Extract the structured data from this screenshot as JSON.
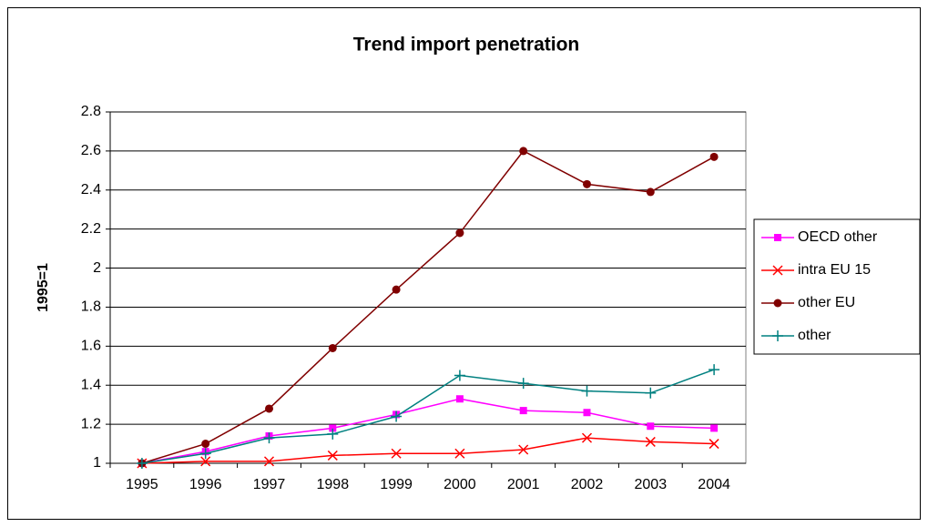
{
  "chart_data": {
    "type": "line",
    "title": "Trend import penetration",
    "y_label": "1995=1",
    "categories": [
      "1995",
      "1996",
      "1997",
      "1998",
      "1999",
      "2000",
      "2001",
      "2002",
      "2003",
      "2004"
    ],
    "series": [
      {
        "name": "OECD other",
        "color": "#ff00ff",
        "marker": "square",
        "values": [
          1.0,
          1.06,
          1.14,
          1.18,
          1.25,
          1.33,
          1.27,
          1.26,
          1.19,
          1.18
        ]
      },
      {
        "name": "intra EU 15",
        "color": "#ff0000",
        "marker": "x",
        "values": [
          1.0,
          1.01,
          1.01,
          1.04,
          1.05,
          1.05,
          1.07,
          1.13,
          1.11,
          1.1
        ]
      },
      {
        "name": "other EU",
        "color": "#800000",
        "marker": "circle",
        "values": [
          1.0,
          1.1,
          1.28,
          1.59,
          1.89,
          2.18,
          2.6,
          2.43,
          2.39,
          2.57
        ]
      },
      {
        "name": "other",
        "color": "#008080",
        "marker": "plus",
        "values": [
          1.0,
          1.05,
          1.13,
          1.15,
          1.24,
          1.45,
          1.41,
          1.37,
          1.36,
          1.48
        ]
      }
    ],
    "ylim": [
      1,
      2.8
    ],
    "yticks": [
      1,
      1.2,
      1.4,
      1.6,
      1.8,
      2,
      2.2,
      2.4,
      2.6,
      2.8
    ],
    "grid": true,
    "legend": "right"
  }
}
